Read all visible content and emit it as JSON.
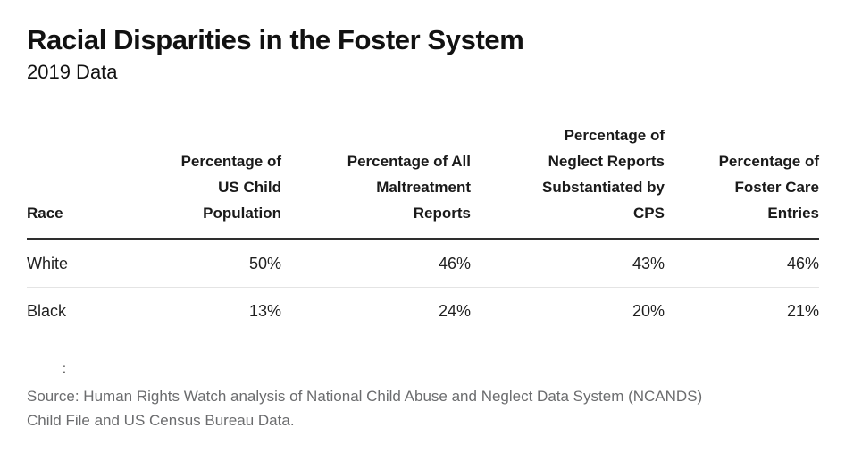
{
  "page": {
    "title": "Racial Disparities in the Foster System",
    "subtitle": "2019 Data"
  },
  "colors": {
    "text": "#1a1a1a",
    "muted_source_text": "#6b6c6e",
    "header_rule": "#2e2e2e",
    "row_divider": "#e4e4e4",
    "background": "#ffffff"
  },
  "table": {
    "headers": [
      "Race",
      "Percentage of\nUS Child\nPopulation",
      "Percentage of All\nMaltreatment\nReports",
      "Percentage of\nNeglect Reports\nSubstantiated by\nCPS",
      "Percentage of\nFoster Care\nEntries"
    ],
    "rows": [
      {
        "cells": [
          "White",
          "50%",
          "46%",
          "43%",
          "46%"
        ]
      },
      {
        "cells": [
          "Black",
          "13%",
          "24%",
          "20%",
          "21%"
        ]
      }
    ]
  },
  "note_colon": ":",
  "source": {
    "lines": [
      "Source: Human Rights Watch analysis of National Child Abuse and Neglect Data System (NCANDS)",
      "Child File and US Census Bureau Data."
    ]
  },
  "chart_data": {
    "type": "table",
    "title": "Racial Disparities in the Foster System",
    "subtitle": "2019 Data",
    "columns": [
      "Race",
      "Percentage of US Child Population",
      "Percentage of All Maltreatment Reports",
      "Percentage of Neglect Reports Substantiated by CPS",
      "Percentage of Foster Care Entries"
    ],
    "rows": [
      {
        "race": "White",
        "us_child_population_pct": 50,
        "all_maltreatment_reports_pct": 46,
        "neglect_reports_substantiated_by_cps_pct": 43,
        "foster_care_entries_pct": 46
      },
      {
        "race": "Black",
        "us_child_population_pct": 13,
        "all_maltreatment_reports_pct": 24,
        "neglect_reports_substantiated_by_cps_pct": 20,
        "foster_care_entries_pct": 21
      }
    ],
    "source": "Source: Human Rights Watch analysis of National Child Abuse and Neglect Data System (NCANDS) Child File and US Census Bureau Data."
  }
}
